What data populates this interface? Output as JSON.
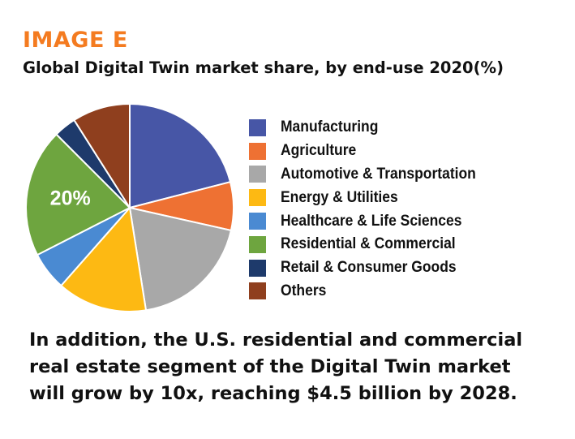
{
  "header": {
    "kicker": "IMAGE E",
    "title": "Global Digital Twin market share, by end-use 2020(%)"
  },
  "chart_data": {
    "type": "pie",
    "title": "Global Digital Twin market share, by end-use 2020(%)",
    "categories": [
      "Manufacturing",
      "Agriculture",
      "Automotive & Transportation",
      "Energy & Utilities",
      "Healthcare & Life Sciences",
      "Residential & Commercial",
      "Retail & Consumer Goods",
      "Others"
    ],
    "values": [
      21,
      7.5,
      19,
      14,
      6,
      20,
      3.5,
      9
    ],
    "colors": [
      "#4756a6",
      "#ee7133",
      "#a8a8a8",
      "#fdb913",
      "#4a8ad2",
      "#6ea53f",
      "#1e3a6b",
      "#8f3f1e"
    ],
    "data_labels": [
      {
        "category": "Residential & Commercial",
        "text": "20%"
      }
    ],
    "legend_position": "right"
  },
  "legend": {
    "items": [
      {
        "label": "Manufacturing",
        "color": "#4756a6"
      },
      {
        "label": "Agriculture",
        "color": "#ee7133"
      },
      {
        "label": "Automotive & Transportation",
        "color": "#a8a8a8"
      },
      {
        "label": "Energy & Utilities",
        "color": "#fdb913"
      },
      {
        "label": "Healthcare & Life Sciences",
        "color": "#4a8ad2"
      },
      {
        "label": "Residential & Commercial",
        "color": "#6ea53f"
      },
      {
        "label": "Retail & Consumer Goods",
        "color": "#1e3a6b"
      },
      {
        "label": "Others",
        "color": "#8f3f1e"
      }
    ]
  },
  "footnote": {
    "lines": [
      "In addition, the U.S. residential and commercial",
      "real estate segment of the Digital Twin market",
      "will grow by 10x, reaching $4.5 billion by 2028."
    ]
  }
}
